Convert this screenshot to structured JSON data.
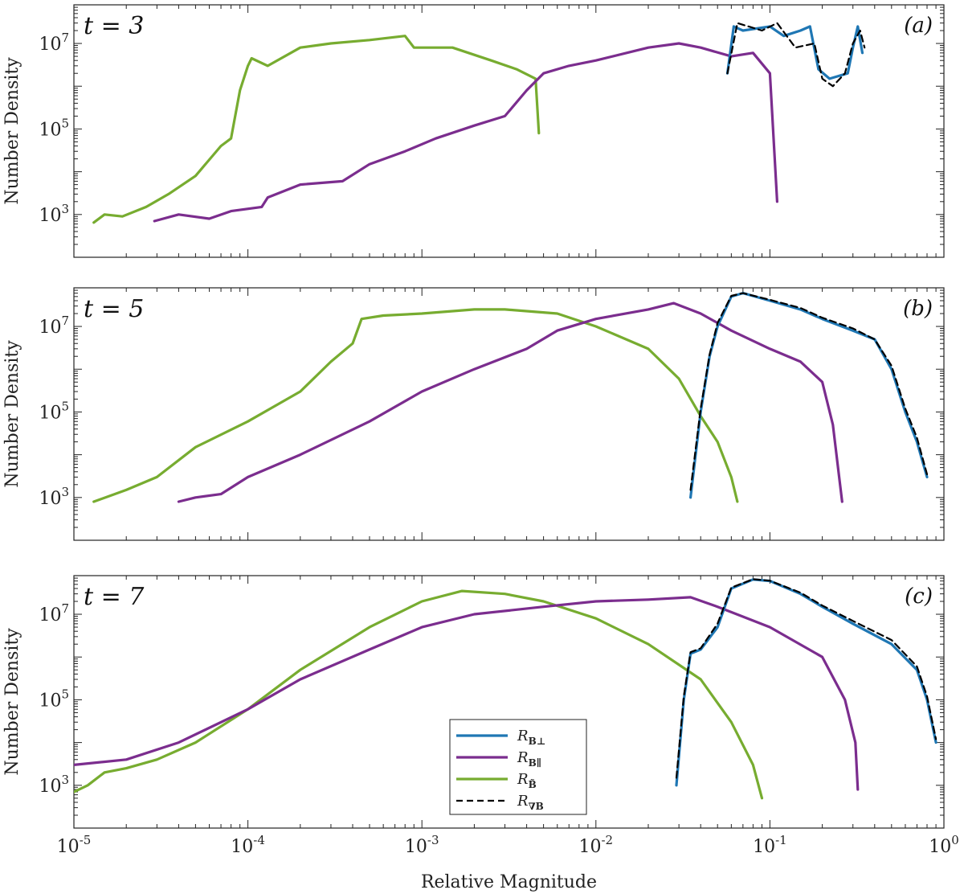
{
  "chart_data": [
    {
      "type": "line",
      "panel_label": "(a)",
      "time_label": "t = 3",
      "ylabel": "Number Density",
      "xlabel": "",
      "xscale": "log",
      "yscale": "log",
      "xlim": [
        1e-05,
        1
      ],
      "ylim": [
        100,
        80000000
      ],
      "x_ticks": [
        "10^-5",
        "10^-4",
        "10^-3",
        "10^-2",
        "10^-1",
        "10^0"
      ],
      "y_ticks": [
        "10^3",
        "10^5",
        "10^7"
      ],
      "series": [
        {
          "legend_key": "green",
          "points": [
            [
              1.3e-05,
              650
            ],
            [
              1.5e-05,
              1000
            ],
            [
              1.9e-05,
              900
            ],
            [
              2.6e-05,
              1500
            ],
            [
              3.5e-05,
              3000
            ],
            [
              5e-05,
              8000
            ],
            [
              7e-05,
              40000
            ],
            [
              8e-05,
              60000
            ],
            [
              9e-05,
              800000
            ],
            [
              0.0001,
              3000000
            ],
            [
              0.000105,
              4500000
            ],
            [
              0.00013,
              3000000
            ],
            [
              0.0002,
              8000000
            ],
            [
              0.0003,
              10000000
            ],
            [
              0.0005,
              12000000
            ],
            [
              0.0008,
              15000000
            ],
            [
              0.0009,
              8000000
            ],
            [
              0.0015,
              8000000
            ],
            [
              0.0025,
              4000000
            ],
            [
              0.0035,
              2500000
            ],
            [
              0.0045,
              1500000
            ],
            [
              0.0047,
              80000
            ]
          ]
        },
        {
          "legend_key": "purple",
          "points": [
            [
              2.9e-05,
              700
            ],
            [
              4e-05,
              1000
            ],
            [
              6e-05,
              800
            ],
            [
              8e-05,
              1200
            ],
            [
              0.00012,
              1500
            ],
            [
              0.00013,
              2500
            ],
            [
              0.0002,
              5000
            ],
            [
              0.00035,
              6000
            ],
            [
              0.0005,
              15000
            ],
            [
              0.0008,
              30000
            ],
            [
              0.0012,
              60000
            ],
            [
              0.002,
              120000
            ],
            [
              0.003,
              200000
            ],
            [
              0.004,
              800000
            ],
            [
              0.005,
              2000000
            ],
            [
              0.007,
              3000000
            ],
            [
              0.01,
              4000000
            ],
            [
              0.02,
              8000000
            ],
            [
              0.03,
              10000000
            ],
            [
              0.04,
              8000000
            ],
            [
              0.06,
              5000000
            ],
            [
              0.08,
              6000000
            ],
            [
              0.1,
              2000000
            ],
            [
              0.11,
              2000
            ]
          ]
        },
        {
          "legend_key": "blue",
          "points": [
            [
              0.057,
              2000000
            ],
            [
              0.062,
              25000000
            ],
            [
              0.07,
              20000000
            ],
            [
              0.1,
              25000000
            ],
            [
              0.12,
              15000000
            ],
            [
              0.15,
              20000000
            ],
            [
              0.17,
              25000000
            ],
            [
              0.19,
              2500000
            ],
            [
              0.22,
              1500000
            ],
            [
              0.28,
              2000000
            ],
            [
              0.3,
              8000000
            ],
            [
              0.32,
              25000000
            ],
            [
              0.34,
              6000000
            ]
          ]
        },
        {
          "legend_key": "dashed",
          "points": [
            [
              0.057,
              2000000
            ],
            [
              0.065,
              30000000
            ],
            [
              0.09,
              20000000
            ],
            [
              0.11,
              30000000
            ],
            [
              0.14,
              8000000
            ],
            [
              0.18,
              10000000
            ],
            [
              0.2,
              1500000
            ],
            [
              0.23,
              1000000
            ],
            [
              0.27,
              2000000
            ],
            [
              0.3,
              10000000
            ],
            [
              0.33,
              20000000
            ],
            [
              0.35,
              8000000
            ]
          ]
        }
      ]
    },
    {
      "type": "line",
      "panel_label": "(b)",
      "time_label": "t = 5",
      "ylabel": "Number Density",
      "xlabel": "",
      "xscale": "log",
      "yscale": "log",
      "xlim": [
        1e-05,
        1
      ],
      "ylim": [
        100,
        80000000
      ],
      "x_ticks": [
        "10^-5",
        "10^-4",
        "10^-3",
        "10^-2",
        "10^-1",
        "10^0"
      ],
      "y_ticks": [
        "10^3",
        "10^5",
        "10^7"
      ],
      "series": [
        {
          "legend_key": "green",
          "points": [
            [
              1.3e-05,
              800
            ],
            [
              2e-05,
              1500
            ],
            [
              3e-05,
              3000
            ],
            [
              5e-05,
              15000
            ],
            [
              0.0001,
              60000
            ],
            [
              0.0002,
              300000
            ],
            [
              0.0003,
              1500000
            ],
            [
              0.0004,
              4000000
            ],
            [
              0.00045,
              15000000
            ],
            [
              0.0006,
              18000000
            ],
            [
              0.001,
              20000000
            ],
            [
              0.002,
              25000000
            ],
            [
              0.003,
              25000000
            ],
            [
              0.006,
              20000000
            ],
            [
              0.01,
              10000000
            ],
            [
              0.02,
              3000000
            ],
            [
              0.03,
              600000
            ],
            [
              0.04,
              80000
            ],
            [
              0.05,
              20000
            ],
            [
              0.06,
              3000
            ],
            [
              0.065,
              800
            ]
          ]
        },
        {
          "legend_key": "purple",
          "points": [
            [
              4e-05,
              800
            ],
            [
              5e-05,
              1000
            ],
            [
              7e-05,
              1200
            ],
            [
              0.0001,
              3000
            ],
            [
              0.0002,
              10000
            ],
            [
              0.0005,
              60000
            ],
            [
              0.001,
              300000
            ],
            [
              0.002,
              1000000
            ],
            [
              0.004,
              3000000
            ],
            [
              0.006,
              8000000
            ],
            [
              0.01,
              15000000
            ],
            [
              0.02,
              25000000
            ],
            [
              0.028,
              35000000
            ],
            [
              0.04,
              20000000
            ],
            [
              0.06,
              8000000
            ],
            [
              0.1,
              3000000
            ],
            [
              0.15,
              1500000
            ],
            [
              0.2,
              500000
            ],
            [
              0.23,
              50000
            ],
            [
              0.25,
              3000
            ],
            [
              0.26,
              800
            ]
          ]
        },
        {
          "legend_key": "blue",
          "points": [
            [
              0.035,
              1000
            ],
            [
              0.04,
              100000
            ],
            [
              0.045,
              2000000
            ],
            [
              0.05,
              10000000
            ],
            [
              0.06,
              50000000
            ],
            [
              0.07,
              60000000
            ],
            [
              0.1,
              40000000
            ],
            [
              0.15,
              25000000
            ],
            [
              0.2,
              15000000
            ],
            [
              0.3,
              8000000
            ],
            [
              0.4,
              5000000
            ],
            [
              0.5,
              1000000
            ],
            [
              0.6,
              100000
            ],
            [
              0.7,
              20000
            ],
            [
              0.8,
              3000
            ]
          ]
        },
        {
          "legend_key": "dashed",
          "points": [
            [
              0.035,
              1500
            ],
            [
              0.04,
              120000
            ],
            [
              0.045,
              2200000
            ],
            [
              0.05,
              12000000
            ],
            [
              0.06,
              52000000
            ],
            [
              0.07,
              60000000
            ],
            [
              0.1,
              42000000
            ],
            [
              0.15,
              27000000
            ],
            [
              0.2,
              16000000
            ],
            [
              0.3,
              9000000
            ],
            [
              0.4,
              5000000
            ],
            [
              0.5,
              1200000
            ],
            [
              0.6,
              120000
            ],
            [
              0.7,
              25000
            ],
            [
              0.8,
              3500
            ]
          ]
        }
      ]
    },
    {
      "type": "line",
      "panel_label": "(c)",
      "time_label": "t = 7",
      "ylabel": "Number Density",
      "xlabel": "Relative Magnitude",
      "xscale": "log",
      "yscale": "log",
      "xlim": [
        1e-05,
        1
      ],
      "ylim": [
        100,
        80000000
      ],
      "x_ticks": [
        "10^-5",
        "10^-4",
        "10^-3",
        "10^-2",
        "10^-1",
        "10^0"
      ],
      "y_ticks": [
        "10^3",
        "10^5",
        "10^7"
      ],
      "series": [
        {
          "legend_key": "green",
          "points": [
            [
              1e-05,
              700
            ],
            [
              1.2e-05,
              1000
            ],
            [
              1.5e-05,
              2000
            ],
            [
              2e-05,
              2500
            ],
            [
              3e-05,
              4000
            ],
            [
              5e-05,
              10000
            ],
            [
              0.0001,
              60000
            ],
            [
              0.0002,
              500000
            ],
            [
              0.0005,
              5000000
            ],
            [
              0.001,
              20000000
            ],
            [
              0.0017,
              35000000
            ],
            [
              0.003,
              30000000
            ],
            [
              0.005,
              20000000
            ],
            [
              0.01,
              8000000
            ],
            [
              0.02,
              2000000
            ],
            [
              0.04,
              300000
            ],
            [
              0.06,
              30000
            ],
            [
              0.08,
              3000
            ],
            [
              0.09,
              500
            ]
          ]
        },
        {
          "legend_key": "purple",
          "points": [
            [
              1e-05,
              3000
            ],
            [
              2e-05,
              4000
            ],
            [
              4e-05,
              10000
            ],
            [
              0.0001,
              60000
            ],
            [
              0.0002,
              300000
            ],
            [
              0.0005,
              1500000
            ],
            [
              0.001,
              5000000
            ],
            [
              0.002,
              10000000
            ],
            [
              0.005,
              15000000
            ],
            [
              0.01,
              20000000
            ],
            [
              0.02,
              22000000
            ],
            [
              0.035,
              25000000
            ],
            [
              0.05,
              15000000
            ],
            [
              0.1,
              5000000
            ],
            [
              0.2,
              1000000
            ],
            [
              0.27,
              100000
            ],
            [
              0.31,
              10000
            ],
            [
              0.32,
              800
            ]
          ]
        },
        {
          "legend_key": "blue",
          "points": [
            [
              0.029,
              1000
            ],
            [
              0.032,
              100000
            ],
            [
              0.035,
              1200000
            ],
            [
              0.04,
              1500000
            ],
            [
              0.05,
              5000000
            ],
            [
              0.06,
              40000000
            ],
            [
              0.08,
              65000000
            ],
            [
              0.1,
              60000000
            ],
            [
              0.15,
              30000000
            ],
            [
              0.2,
              15000000
            ],
            [
              0.3,
              6000000
            ],
            [
              0.5,
              2000000
            ],
            [
              0.7,
              500000
            ],
            [
              0.8,
              100000
            ],
            [
              0.9,
              10000
            ]
          ]
        },
        {
          "legend_key": "dashed",
          "points": [
            [
              0.029,
              1500
            ],
            [
              0.032,
              120000
            ],
            [
              0.035,
              1300000
            ],
            [
              0.04,
              1600000
            ],
            [
              0.05,
              6000000
            ],
            [
              0.06,
              42000000
            ],
            [
              0.08,
              66000000
            ],
            [
              0.1,
              61000000
            ],
            [
              0.15,
              32000000
            ],
            [
              0.2,
              16000000
            ],
            [
              0.3,
              7000000
            ],
            [
              0.5,
              2500000
            ],
            [
              0.7,
              600000
            ],
            [
              0.8,
              120000
            ],
            [
              0.9,
              12000
            ]
          ]
        }
      ]
    }
  ],
  "legend": {
    "position": "bottom-center of panel (c)",
    "entries": [
      {
        "key": "blue",
        "label": "R",
        "sub": "B⊥",
        "style": "solid"
      },
      {
        "key": "purple",
        "label": "R",
        "sub": "B∥",
        "style": "solid"
      },
      {
        "key": "green",
        "label": "R",
        "sub": "B̃",
        "style": "solid"
      },
      {
        "key": "dashed",
        "label": "R",
        "sub": "∇B",
        "style": "dashed"
      }
    ]
  },
  "colors": {
    "blue": "#1f77b4",
    "purple": "#7b2d8e",
    "green": "#77ac30",
    "dashed": "#000000",
    "axis": "#222222"
  }
}
